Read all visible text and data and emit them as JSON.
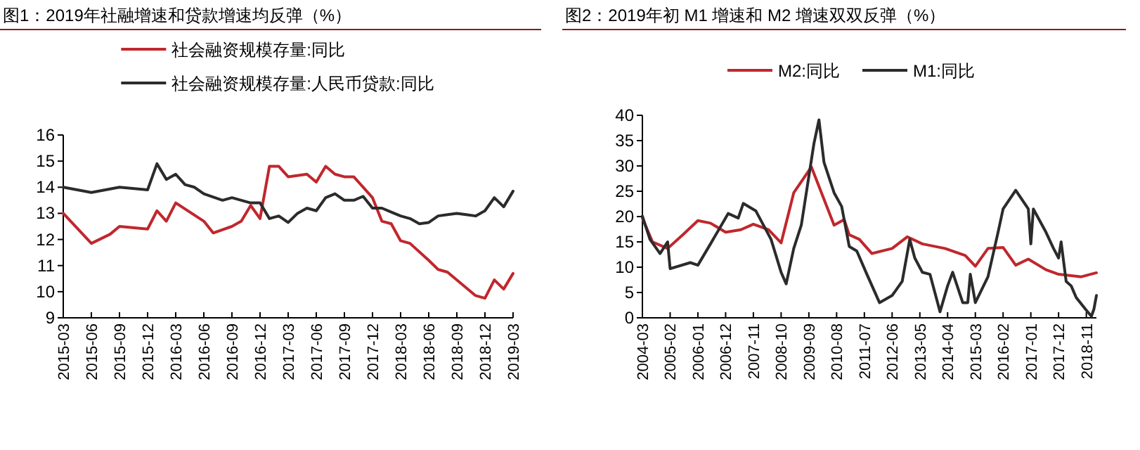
{
  "chart_data": [
    {
      "type": "line",
      "title": "图1：2019年社融增速和贷款增速均反弹（%）",
      "legend": "top",
      "xlim": [
        "2015-03",
        "2019-03"
      ],
      "ylim": [
        9,
        16
      ],
      "xticks": [
        "2015-03",
        "2015-06",
        "2015-09",
        "2015-12",
        "2016-03",
        "2016-06",
        "2016-09",
        "2016-12",
        "2017-03",
        "2017-06",
        "2017-09",
        "2017-12",
        "2018-03",
        "2018-06",
        "2018-09",
        "2018-12",
        "2019-03"
      ],
      "yticks": [
        9,
        10,
        11,
        12,
        13,
        14,
        15,
        16
      ],
      "series": [
        {
          "name": "社会融资规模存量:同比",
          "color": "#c0272d",
          "x": [
            "2015-03",
            "2015-06",
            "2015-08",
            "2015-09",
            "2015-12",
            "2016-01",
            "2016-02",
            "2016-03",
            "2016-06",
            "2016-07",
            "2016-09",
            "2016-10",
            "2016-11",
            "2016-12",
            "2017-01",
            "2017-02",
            "2017-03",
            "2017-05",
            "2017-06",
            "2017-07",
            "2017-08",
            "2017-09",
            "2017-10",
            "2017-12",
            "2018-01",
            "2018-02",
            "2018-03",
            "2018-04",
            "2018-06",
            "2018-07",
            "2018-08",
            "2018-11",
            "2018-12",
            "2019-01",
            "2019-02",
            "2019-03"
          ],
          "values": [
            13.0,
            11.85,
            12.2,
            12.5,
            12.4,
            13.1,
            12.7,
            13.4,
            12.7,
            12.25,
            12.5,
            12.7,
            13.3,
            12.8,
            14.8,
            14.8,
            14.4,
            14.5,
            14.2,
            14.8,
            14.5,
            14.4,
            14.4,
            13.6,
            12.7,
            12.6,
            11.95,
            11.85,
            11.2,
            10.85,
            10.75,
            9.85,
            9.75,
            10.45,
            10.1,
            10.7
          ]
        },
        {
          "name": "社会融资规模存量:人民币贷款:同比",
          "color": "#2b2b2b",
          "x": [
            "2015-03",
            "2015-06",
            "2015-09",
            "2015-12",
            "2016-01",
            "2016-02",
            "2016-03",
            "2016-04",
            "2016-05",
            "2016-06",
            "2016-08",
            "2016-09",
            "2016-11",
            "2016-12",
            "2017-01",
            "2017-02",
            "2017-03",
            "2017-04",
            "2017-05",
            "2017-06",
            "2017-07",
            "2017-08",
            "2017-09",
            "2017-10",
            "2017-11",
            "2017-12",
            "2018-01",
            "2018-02",
            "2018-03",
            "2018-04",
            "2018-05",
            "2018-06",
            "2018-07",
            "2018-08",
            "2018-09",
            "2018-10",
            "2018-11",
            "2018-12",
            "2019-01",
            "2019-02",
            "2019-03"
          ],
          "values": [
            14.0,
            13.8,
            14.0,
            13.9,
            14.9,
            14.3,
            14.5,
            14.1,
            14.0,
            13.75,
            13.5,
            13.6,
            13.4,
            13.4,
            12.8,
            12.9,
            12.65,
            13.0,
            13.2,
            13.1,
            13.6,
            13.75,
            13.5,
            13.5,
            13.65,
            13.2,
            13.2,
            13.05,
            12.9,
            12.8,
            12.6,
            12.65,
            12.9,
            12.95,
            13.0,
            12.95,
            12.9,
            13.1,
            13.6,
            13.25,
            13.85
          ]
        }
      ]
    },
    {
      "type": "line",
      "title": "图2：2019年初 M1 增速和 M2 增速双双反弹（%）",
      "legend": "top",
      "xlim": [
        "2004-03",
        "2019-03"
      ],
      "ylim": [
        0,
        40
      ],
      "xticks": [
        "2004-03",
        "2005-02",
        "2006-01",
        "2006-12",
        "2007-11",
        "2008-10",
        "2009-09",
        "2010-08",
        "2011-07",
        "2012-06",
        "2013-05",
        "2014-04",
        "2015-03",
        "2016-02",
        "2017-01",
        "2017-12",
        "2018-11"
      ],
      "yticks": [
        0,
        5,
        10,
        15,
        20,
        25,
        30,
        35,
        40
      ],
      "series": [
        {
          "name": "M2:同比",
          "color": "#c0272d",
          "x": [
            "2004-03",
            "2004-07",
            "2005-01",
            "2005-07",
            "2006-01",
            "2006-06",
            "2006-12",
            "2007-06",
            "2007-11",
            "2008-05",
            "2008-10",
            "2009-03",
            "2009-10",
            "2010-02",
            "2010-07",
            "2010-11",
            "2011-01",
            "2011-05",
            "2011-10",
            "2012-06",
            "2012-12",
            "2013-06",
            "2014-03",
            "2014-11",
            "2015-03",
            "2015-08",
            "2016-02",
            "2016-07",
            "2016-12",
            "2017-07",
            "2017-12",
            "2018-09",
            "2019-03"
          ],
          "values": [
            19.7,
            15.0,
            13.7,
            16.4,
            19.2,
            18.7,
            16.9,
            17.4,
            18.5,
            17.4,
            14.8,
            24.7,
            29.8,
            24.7,
            18.3,
            19.4,
            16.4,
            15.5,
            12.7,
            13.7,
            16.0,
            14.6,
            13.7,
            12.3,
            10.2,
            13.7,
            13.9,
            10.4,
            11.6,
            9.5,
            8.6,
            8.1,
            8.9
          ]
        },
        {
          "name": "M1:同比",
          "color": "#2b2b2b",
          "x": [
            "2004-03",
            "2004-06",
            "2004-10",
            "2005-01",
            "2005-02",
            "2005-10",
            "2006-01",
            "2006-06",
            "2007-01",
            "2007-05",
            "2007-07",
            "2007-12",
            "2008-06",
            "2008-10",
            "2008-12",
            "2009-03",
            "2009-06",
            "2009-11",
            "2010-01",
            "2010-03",
            "2010-07",
            "2010-10",
            "2011-01",
            "2011-04",
            "2011-08",
            "2012-01",
            "2012-06",
            "2012-10",
            "2013-01",
            "2013-03",
            "2013-06",
            "2013-09",
            "2014-01",
            "2014-04",
            "2014-06",
            "2014-10",
            "2014-12",
            "2015-01",
            "2015-03",
            "2015-08",
            "2015-12",
            "2016-02",
            "2016-07",
            "2016-12",
            "2017-01",
            "2017-02",
            "2017-07",
            "2017-10",
            "2017-12",
            "2018-01",
            "2018-03",
            "2018-05",
            "2018-07",
            "2018-11",
            "2019-01",
            "2019-02",
            "2019-03"
          ],
          "values": [
            20.1,
            15.5,
            12.7,
            15.0,
            9.7,
            10.9,
            10.4,
            14.6,
            20.6,
            19.7,
            22.6,
            21.1,
            15.5,
            9.0,
            6.7,
            13.7,
            18.3,
            34.4,
            39.1,
            30.7,
            24.7,
            22.0,
            14.1,
            13.2,
            8.6,
            3.0,
            4.4,
            7.2,
            15.5,
            11.8,
            9.0,
            8.6,
            1.2,
            6.3,
            9.0,
            3.0,
            3.0,
            8.6,
            3.0,
            8.1,
            16.9,
            21.5,
            25.2,
            21.5,
            14.6,
            21.5,
            16.9,
            13.7,
            11.8,
            15.0,
            7.2,
            6.3,
            4.0,
            1.5,
            0.3,
            1.7,
            4.4
          ]
        }
      ]
    }
  ]
}
